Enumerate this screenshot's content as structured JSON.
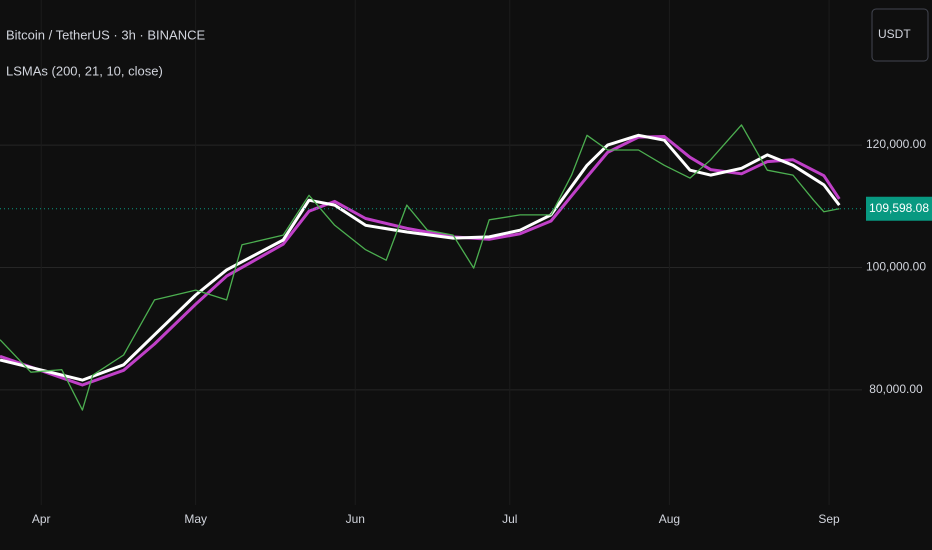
{
  "chart_data": {
    "type": "line",
    "title": "Bitcoin / TetherUS · 3h · BINANCE",
    "subtitle": "LSMAs (200, 21, 10, close)",
    "currency": "USDT",
    "xlim": [
      0,
      167.4
    ],
    "xticks": [
      {
        "value": 8,
        "label": "Apr"
      },
      {
        "value": 38,
        "label": "May"
      },
      {
        "value": 69,
        "label": "Jun"
      },
      {
        "value": 99,
        "label": "Jul"
      },
      {
        "value": 130,
        "label": "Aug"
      },
      {
        "value": 161,
        "label": "Sep"
      }
    ],
    "ylim": [
      61200,
      143700
    ],
    "yticks": [
      {
        "value": 80000,
        "label": "80,000.00"
      },
      {
        "value": 100000,
        "label": "100,000.00"
      },
      {
        "value": 120000,
        "label": "120,000.00"
      }
    ],
    "grid": true,
    "last_price": {
      "value": 109598.08,
      "label": "109,598.08",
      "color": "#089981"
    },
    "series": [
      {
        "color": "#4caf50",
        "x": [
          0,
          6,
          12,
          16,
          18,
          24,
          30,
          38,
          44,
          47,
          55,
          60,
          65,
          71,
          75,
          79,
          83,
          88,
          92,
          95,
          101,
          107,
          111,
          114,
          118,
          124,
          129,
          134,
          138,
          144,
          149,
          154,
          158,
          160,
          163
        ],
        "values": [
          88200,
          82900,
          83300,
          76700,
          82400,
          85700,
          94700,
          96300,
          94700,
          103700,
          105300,
          111800,
          106900,
          102900,
          101200,
          110200,
          106100,
          105300,
          99900,
          107800,
          108600,
          108600,
          115100,
          121600,
          119200,
          119200,
          116700,
          114600,
          117600,
          123300,
          115900,
          115100,
          111000,
          109100,
          109598.08
        ]
      },
      {
        "color": "#ffffff",
        "x": [
          0,
          16,
          24,
          30,
          38,
          44,
          55,
          60,
          65,
          71,
          79,
          88,
          95,
          101,
          107,
          114,
          118,
          124,
          129,
          134,
          138,
          144,
          149,
          154,
          160,
          163
        ],
        "values": [
          84900,
          81600,
          84100,
          89000,
          95500,
          99600,
          104500,
          111000,
          110200,
          106900,
          105800,
          104800,
          105000,
          106100,
          108600,
          116700,
          120000,
          121600,
          120800,
          115900,
          115100,
          116200,
          118400,
          116700,
          113500,
          110200
        ]
      },
      {
        "color": "#c040c8",
        "x": [
          0,
          16,
          24,
          30,
          38,
          44,
          55,
          60,
          65,
          71,
          79,
          88,
          95,
          101,
          107,
          114,
          118,
          124,
          129,
          134,
          138,
          144,
          149,
          154,
          160,
          163
        ],
        "values": [
          85500,
          80800,
          83200,
          87500,
          94000,
          98600,
          103800,
          109200,
          110800,
          108000,
          106400,
          105000,
          104600,
          105500,
          107600,
          114800,
          118800,
          121300,
          121400,
          118000,
          116000,
          115300,
          117300,
          117600,
          115000,
          111200
        ]
      }
    ]
  }
}
